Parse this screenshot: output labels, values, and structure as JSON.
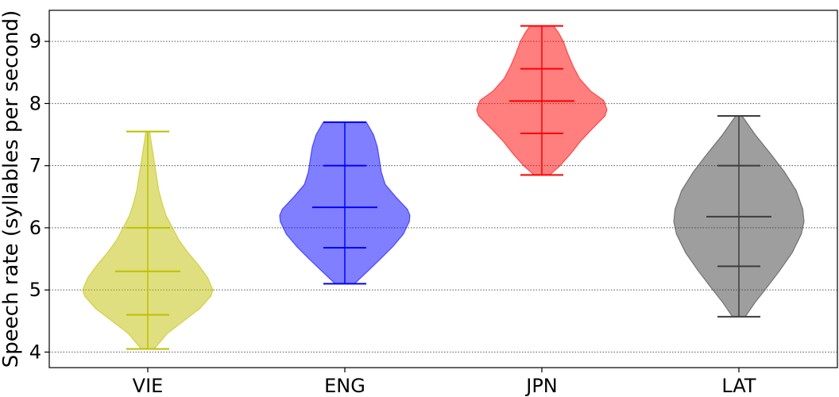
{
  "chart_data": {
    "type": "violin",
    "title": "",
    "xlabel": "",
    "ylabel": "Speech rate (syllables per second)",
    "categories": [
      "VIE",
      "ENG",
      "JPN",
      "LAT"
    ],
    "ylim": [
      3.75,
      9.5
    ],
    "yticks": [
      4,
      5,
      6,
      7,
      8,
      9
    ],
    "grid": "horizontal-dotted",
    "series": [
      {
        "category": "VIE",
        "color": "#bfbf00",
        "min": 4.05,
        "q1": 4.6,
        "median": 5.3,
        "q3": 6.0,
        "max": 7.55,
        "density": [
          [
            4.05,
            0.1
          ],
          [
            4.3,
            0.3
          ],
          [
            4.5,
            0.55
          ],
          [
            4.7,
            0.8
          ],
          [
            4.9,
            0.97
          ],
          [
            5.0,
            1.0
          ],
          [
            5.2,
            0.92
          ],
          [
            5.4,
            0.78
          ],
          [
            5.6,
            0.62
          ],
          [
            5.8,
            0.48
          ],
          [
            6.0,
            0.38
          ],
          [
            6.2,
            0.28
          ],
          [
            6.4,
            0.22
          ],
          [
            6.6,
            0.17
          ],
          [
            6.8,
            0.14
          ],
          [
            7.0,
            0.11
          ],
          [
            7.2,
            0.08
          ],
          [
            7.4,
            0.05
          ],
          [
            7.55,
            0.03
          ]
        ]
      },
      {
        "category": "ENG",
        "color": "#0000ff",
        "min": 5.1,
        "q1": 5.68,
        "median": 6.33,
        "q3": 7.0,
        "max": 7.7,
        "density": [
          [
            5.1,
            0.15
          ],
          [
            5.3,
            0.35
          ],
          [
            5.5,
            0.55
          ],
          [
            5.7,
            0.74
          ],
          [
            5.9,
            0.9
          ],
          [
            6.1,
            0.99
          ],
          [
            6.2,
            1.0
          ],
          [
            6.3,
            0.96
          ],
          [
            6.5,
            0.78
          ],
          [
            6.7,
            0.62
          ],
          [
            6.9,
            0.56
          ],
          [
            7.1,
            0.53
          ],
          [
            7.3,
            0.5
          ],
          [
            7.5,
            0.44
          ],
          [
            7.7,
            0.33
          ]
        ]
      },
      {
        "category": "JPN",
        "color": "#ff0000",
        "min": 6.85,
        "q1": 7.52,
        "median": 8.04,
        "q3": 8.56,
        "max": 9.25,
        "density": [
          [
            6.85,
            0.12
          ],
          [
            7.0,
            0.28
          ],
          [
            7.2,
            0.45
          ],
          [
            7.4,
            0.6
          ],
          [
            7.6,
            0.78
          ],
          [
            7.8,
            0.97
          ],
          [
            7.9,
            1.0
          ],
          [
            8.05,
            0.95
          ],
          [
            8.2,
            0.75
          ],
          [
            8.4,
            0.58
          ],
          [
            8.6,
            0.48
          ],
          [
            8.8,
            0.4
          ],
          [
            9.0,
            0.33
          ],
          [
            9.15,
            0.25
          ],
          [
            9.25,
            0.18
          ]
        ]
      },
      {
        "category": "LAT",
        "color": "#3d3d3d",
        "min": 4.57,
        "q1": 5.38,
        "median": 6.18,
        "q3": 7.0,
        "max": 7.8,
        "density": [
          [
            4.57,
            0.1
          ],
          [
            4.8,
            0.25
          ],
          [
            5.0,
            0.4
          ],
          [
            5.3,
            0.62
          ],
          [
            5.6,
            0.82
          ],
          [
            5.9,
            0.96
          ],
          [
            6.1,
            1.0
          ],
          [
            6.3,
            0.98
          ],
          [
            6.6,
            0.88
          ],
          [
            6.9,
            0.7
          ],
          [
            7.2,
            0.48
          ],
          [
            7.5,
            0.25
          ],
          [
            7.8,
            0.05
          ]
        ]
      }
    ]
  }
}
